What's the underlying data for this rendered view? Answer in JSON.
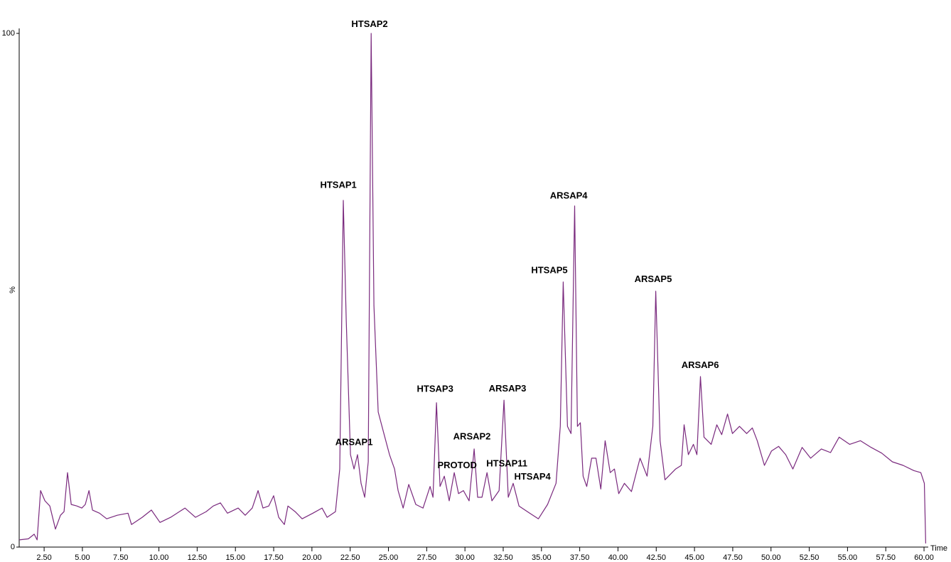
{
  "chart_data": {
    "type": "line",
    "x_label": "Time",
    "y_label": "%",
    "color": "#7a2a7e",
    "xlim": [
      0.87,
      60.23
    ],
    "ylim": [
      0,
      100
    ],
    "yticks": [
      0,
      100
    ],
    "xticks": [
      {
        "value": 2.5,
        "label": "2.50"
      },
      {
        "value": 5,
        "label": "5.00"
      },
      {
        "value": 7.5,
        "label": "7.50"
      },
      {
        "value": 10,
        "label": "10.00"
      },
      {
        "value": 12.5,
        "label": "12.50"
      },
      {
        "value": 15,
        "label": "15.00"
      },
      {
        "value": 17.5,
        "label": "17.50"
      },
      {
        "value": 20,
        "label": "20.00"
      },
      {
        "value": 22.5,
        "label": "22.50"
      },
      {
        "value": 25,
        "label": "25.00"
      },
      {
        "value": 27.5,
        "label": "27.50"
      },
      {
        "value": 30,
        "label": "30.00"
      },
      {
        "value": 32.5,
        "label": "32.50"
      },
      {
        "value": 35,
        "label": "35.00"
      },
      {
        "value": 37.5,
        "label": "37.50"
      },
      {
        "value": 40,
        "label": "40.00"
      },
      {
        "value": 42.5,
        "label": "42.50"
      },
      {
        "value": 45,
        "label": "45.00"
      },
      {
        "value": 47.5,
        "label": "47.50"
      },
      {
        "value": 50,
        "label": "50.00"
      },
      {
        "value": 52.5,
        "label": "52.50"
      },
      {
        "value": 55,
        "label": "55.00"
      },
      {
        "value": 57.5,
        "label": "57.50"
      },
      {
        "value": 60,
        "label": "60.00"
      }
    ],
    "x": [
      0.87,
      1.47,
      1.85,
      2.04,
      2.27,
      2.55,
      2.87,
      3.24,
      3.57,
      3.8,
      4.03,
      4.27,
      4.64,
      4.96,
      5.19,
      5.43,
      5.66,
      6.12,
      6.59,
      7.28,
      7.98,
      8.21,
      8.91,
      9.51,
      10.07,
      10.77,
      11.7,
      12.39,
      13.09,
      13.55,
      14.02,
      14.48,
      15.18,
      15.64,
      16.1,
      16.48,
      16.8,
      17.18,
      17.5,
      17.83,
      18.2,
      18.43,
      18.9,
      19.36,
      20.06,
      20.66,
      20.99,
      21.54,
      21.82,
      22.05,
      22.24,
      22.52,
      22.75,
      22.98,
      23.21,
      23.45,
      23.68,
      23.87,
      24.05,
      24.33,
      24.7,
      25.07,
      25.4,
      25.63,
      25.96,
      26.33,
      26.79,
      27.26,
      27.72,
      27.91,
      28.14,
      28.37,
      28.65,
      28.97,
      29.3,
      29.58,
      29.9,
      30.27,
      30.6,
      30.83,
      31.11,
      31.44,
      31.76,
      32.23,
      32.55,
      32.83,
      33.15,
      33.53,
      34.23,
      34.8,
      35.4,
      35.95,
      36.23,
      36.42,
      36.7,
      36.93,
      37.17,
      37.35,
      37.54,
      37.72,
      37.96,
      38.28,
      38.56,
      38.88,
      39.16,
      39.49,
      39.77,
      40.05,
      40.42,
      40.88,
      41.44,
      41.9,
      42.28,
      42.47,
      42.75,
      43.07,
      43.77,
      44.14,
      44.32,
      44.6,
      44.93,
      45.16,
      45.39,
      45.62,
      46.09,
      46.46,
      46.78,
      47.16,
      47.48,
      47.94,
      48.41,
      48.78,
      49.1,
      49.57,
      50.03,
      50.5,
      50.96,
      51.43,
      52.03,
      52.59,
      53.29,
      53.89,
      54.45,
      55.14,
      55.84,
      56.54,
      57.23,
      57.93,
      58.63,
      59.33,
      59.79,
      60.02,
      60.11
    ],
    "values": [
      1.4,
      1.6,
      2.5,
      1.4,
      11,
      9,
      8,
      3.5,
      6.2,
      6.9,
      14.5,
      8.3,
      8,
      7.6,
      8.3,
      11,
      7.2,
      6.6,
      5.5,
      6.2,
      6.6,
      4.4,
      5.8,
      7.2,
      4.8,
      5.8,
      7.6,
      5.8,
      6.9,
      8,
      8.6,
      6.6,
      7.6,
      6.2,
      7.6,
      11,
      7.6,
      8,
      10,
      5.8,
      4.4,
      8,
      6.9,
      5.5,
      6.6,
      7.6,
      5.8,
      6.9,
      15.2,
      67.5,
      44.3,
      18,
      15.2,
      18,
      12.4,
      9.7,
      16.6,
      100,
      47,
      26.3,
      22.1,
      18,
      15.2,
      11,
      7.6,
      12.2,
      8.3,
      7.6,
      11.8,
      9.7,
      28.1,
      11.8,
      13.8,
      9,
      14.5,
      10.4,
      11,
      9,
      19.1,
      9.7,
      9.7,
      14.5,
      9,
      11,
      28.6,
      9.7,
      12.4,
      8,
      6.6,
      5.5,
      8.3,
      12.4,
      23.5,
      51.6,
      23.5,
      22.1,
      66.4,
      23.5,
      24.2,
      13.8,
      11.8,
      17.3,
      17.3,
      11.3,
      20.7,
      14.5,
      15.2,
      10.4,
      12.4,
      10.8,
      17.3,
      13.8,
      23.5,
      49.8,
      20.7,
      13.1,
      15.2,
      15.9,
      23.8,
      18,
      20,
      18,
      33.2,
      21.4,
      20,
      23.8,
      21.9,
      25.9,
      22.1,
      23.5,
      22.1,
      23.2,
      20.7,
      15.9,
      18.7,
      19.6,
      18,
      15.2,
      19.4,
      17.3,
      19.1,
      18.4,
      21.4,
      20,
      20.7,
      19.4,
      18.3,
      16.6,
      15.9,
      14.9,
      14.5,
      12.4,
      0.7
    ],
    "annotations": [
      {
        "text": "HTSAP2",
        "x": 23.77,
        "y": 101.7
      },
      {
        "text": "HTSAP1",
        "x": 21.73,
        "y": 70.4
      },
      {
        "text": "ARSAP4",
        "x": 36.78,
        "y": 68.3
      },
      {
        "text": "HTSAP5",
        "x": 35.52,
        "y": 53.8
      },
      {
        "text": "ARSAP5",
        "x": 42.3,
        "y": 52.1
      },
      {
        "text": "ARSAP6",
        "x": 45.37,
        "y": 35.3
      },
      {
        "text": "HTSAP3",
        "x": 28.05,
        "y": 30.7
      },
      {
        "text": "ARSAP3",
        "x": 32.78,
        "y": 30.8
      },
      {
        "text": "ARSAP2",
        "x": 30.46,
        "y": 21.4
      },
      {
        "text": "ARSAP1",
        "x": 22.75,
        "y": 20.3
      },
      {
        "text": "PROTOD",
        "x": 29.49,
        "y": 15.8
      },
      {
        "text": "HTSAP11",
        "x": 32.74,
        "y": 16.2
      },
      {
        "text": "HTSAP4",
        "x": 34.41,
        "y": 13.6
      }
    ]
  }
}
